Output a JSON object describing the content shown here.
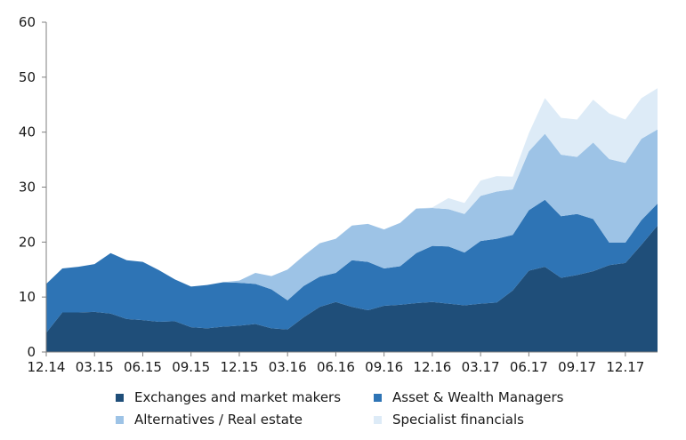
{
  "chart_data": {
    "type": "area",
    "stacked": true,
    "x": [
      "12.14",
      "01.15",
      "02.15",
      "03.15",
      "04.15",
      "05.15",
      "06.15",
      "07.15",
      "08.15",
      "09.15",
      "10.15",
      "11.15",
      "12.15",
      "01.16",
      "02.16",
      "03.16",
      "04.16",
      "05.16",
      "06.16",
      "07.16",
      "08.16",
      "09.16",
      "10.16",
      "11.16",
      "12.16",
      "01.17",
      "02.17",
      "03.17",
      "04.17",
      "05.17",
      "06.17",
      "07.17",
      "08.17",
      "09.17",
      "10.17",
      "11.17",
      "12.17",
      "01.18",
      "02.18"
    ],
    "xtick_labels": [
      "12.14",
      "03.15",
      "06.15",
      "09.15",
      "12.15",
      "03.16",
      "06.16",
      "09.16",
      "12.16",
      "03.17",
      "06.17",
      "09.17",
      "12.17"
    ],
    "ylim": [
      0,
      60
    ],
    "yticks": [
      0,
      10,
      20,
      30,
      40,
      50,
      60
    ],
    "grid": false,
    "legend_position": "bottom",
    "series": [
      {
        "name": "Exchanges and market makers",
        "color": "#1f4e79",
        "values": [
          3.5,
          7.2,
          7.2,
          7.3,
          7.0,
          6.0,
          5.8,
          5.5,
          5.6,
          4.5,
          4.3,
          4.6,
          4.8,
          5.1,
          4.3,
          4.1,
          6.3,
          8.2,
          9.1,
          8.2,
          7.6,
          8.4,
          8.6,
          8.9,
          9.1,
          8.8,
          8.5,
          8.8,
          9.0,
          11.2,
          14.8,
          15.5,
          13.5,
          14.0,
          14.7,
          15.8,
          16.2,
          19.5,
          23.0
        ]
      },
      {
        "name": "Asset & Wealth Managers",
        "color": "#2e74b5",
        "values": [
          8.9,
          8.0,
          8.3,
          8.7,
          11.0,
          10.7,
          10.6,
          9.4,
          7.6,
          7.4,
          7.9,
          8.1,
          7.8,
          7.3,
          7.1,
          5.3,
          5.7,
          5.5,
          5.3,
          8.5,
          8.8,
          6.8,
          7.0,
          9.1,
          10.2,
          10.4,
          9.6,
          11.4,
          11.6,
          10.1,
          11.0,
          12.2,
          11.2,
          11.1,
          9.5,
          4.1,
          3.7,
          4.5,
          4.0
        ]
      },
      {
        "name": "Alternatives / Real estate",
        "color": "#9dc3e6",
        "values": [
          0,
          0,
          0,
          0,
          0,
          0,
          0,
          0,
          0,
          0,
          0,
          0,
          0.4,
          2.0,
          2.4,
          5.6,
          5.5,
          6.1,
          6.2,
          6.3,
          6.9,
          7.1,
          7.9,
          8.1,
          6.9,
          6.8,
          7.0,
          8.2,
          8.6,
          8.3,
          10.7,
          12.0,
          11.2,
          10.4,
          13.9,
          15.2,
          14.5,
          14.8,
          13.5
        ]
      },
      {
        "name": "Specialist financials",
        "color": "#ddebf7",
        "values": [
          0,
          0,
          0,
          0,
          0,
          0,
          0,
          0,
          0,
          0,
          0,
          0,
          0,
          0,
          0,
          0,
          0,
          0,
          0,
          0,
          0,
          0,
          0,
          0,
          0.1,
          2.0,
          2.0,
          2.8,
          2.8,
          2.3,
          3.3,
          6.5,
          6.7,
          6.8,
          7.8,
          8.3,
          7.9,
          7.4,
          7.5
        ]
      }
    ]
  }
}
